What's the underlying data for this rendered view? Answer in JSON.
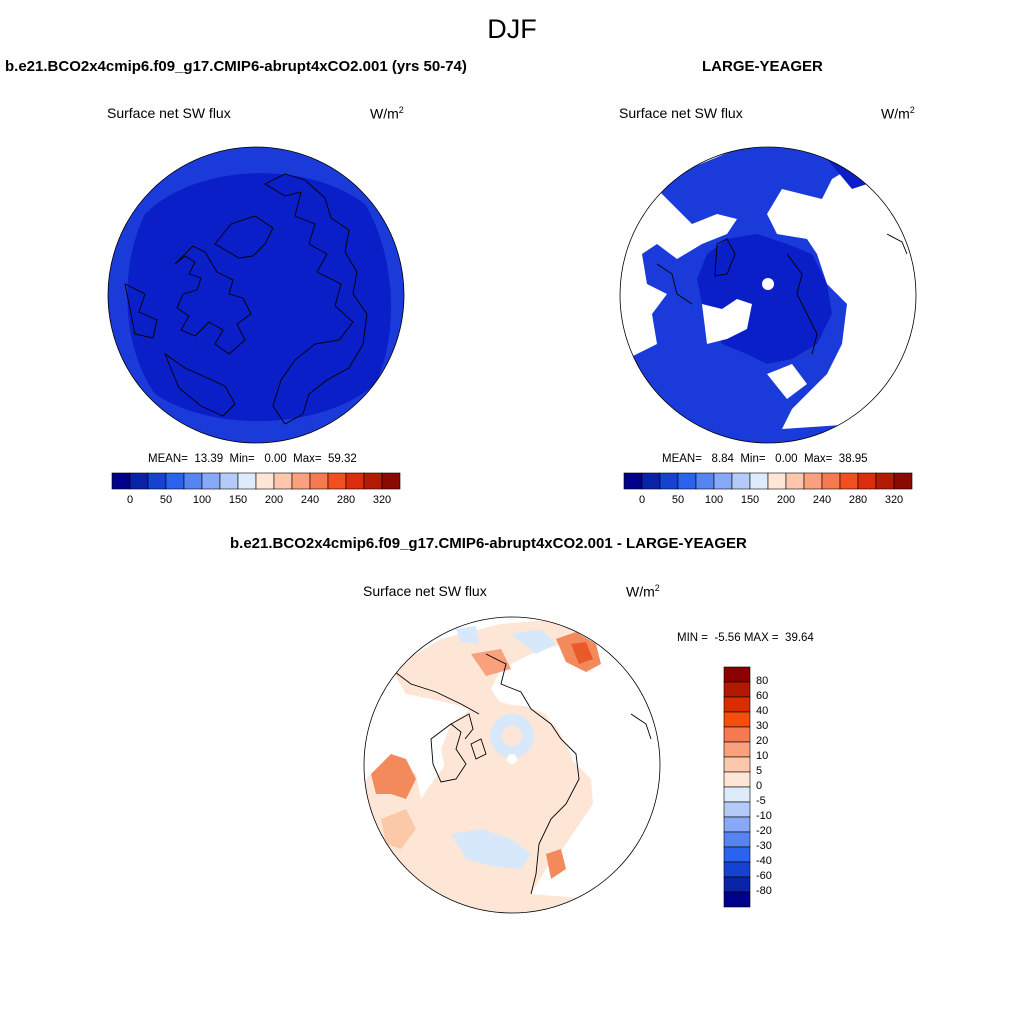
{
  "figure": {
    "season_title": "DJF"
  },
  "panel_model": {
    "title": "b.e21.BCO2x4cmip6.f09_g17.CMIP6-abrupt4xCO2.001 (yrs 50-74)",
    "variable": "Surface net SW flux",
    "units_base": "W/m",
    "units_exp": "2",
    "mean_label": "MEAN=",
    "mean": "13.39",
    "min_label": "Min=",
    "min": "0.00",
    "max_label": "Max=",
    "max": "59.32"
  },
  "panel_obs": {
    "title": "LARGE-YEAGER",
    "variable": "Surface net SW flux",
    "units_base": "W/m",
    "units_exp": "2",
    "mean_label": "MEAN=",
    "mean": "8.84",
    "min_label": "Min=",
    "min": "0.00",
    "max_label": "Max=",
    "max": "38.95"
  },
  "panel_diff": {
    "title": "b.e21.BCO2x4cmip6.f09_g17.CMIP6-abrupt4xCO2.001 - LARGE-YEAGER",
    "variable": "Surface net SW flux",
    "units_base": "W/m",
    "units_exp": "2",
    "min_label": "MIN =",
    "min": "-5.56",
    "max_label": "MAX =",
    "max": "39.64"
  },
  "colorbar_abs": {
    "colors": [
      "#00008b",
      "#0a23a6",
      "#1543d0",
      "#2a63ee",
      "#5685f2",
      "#88a9f5",
      "#b4cbf8",
      "#deebfb",
      "#fde6d6",
      "#fdc7ad",
      "#f9a07c",
      "#f67a4f",
      "#f0501f",
      "#d92d0b",
      "#b41b05",
      "#8a0a00"
    ],
    "tick_labels": [
      "0",
      "50",
      "100",
      "150",
      "200",
      "240",
      "280",
      "320"
    ]
  },
  "colorbar_diff": {
    "colors": [
      "#8b0000",
      "#b21700",
      "#d92d00",
      "#f54c0f",
      "#f67a4f",
      "#f9a07c",
      "#fdc7ad",
      "#fde6d6",
      "#deebfb",
      "#b4cbf8",
      "#88a9f5",
      "#5685f2",
      "#2a63ee",
      "#1543d0",
      "#0a23a6",
      "#00008b"
    ],
    "tick_labels": [
      "80",
      "60",
      "40",
      "30",
      "20",
      "10",
      "5",
      "0",
      "-5",
      "-10",
      "-20",
      "-30",
      "-40",
      "-60",
      "-80"
    ]
  },
  "map_colors": {
    "deep_blue": "#0a1fc8",
    "mid_blue": "#1a3bd9",
    "light_peach": "#fde6d6",
    "peach": "#fcc9a8",
    "orange": "#f28a5c",
    "red_orange": "#e85a2a",
    "light_blue": "#d8e8fb",
    "missing": "#ffffff"
  }
}
